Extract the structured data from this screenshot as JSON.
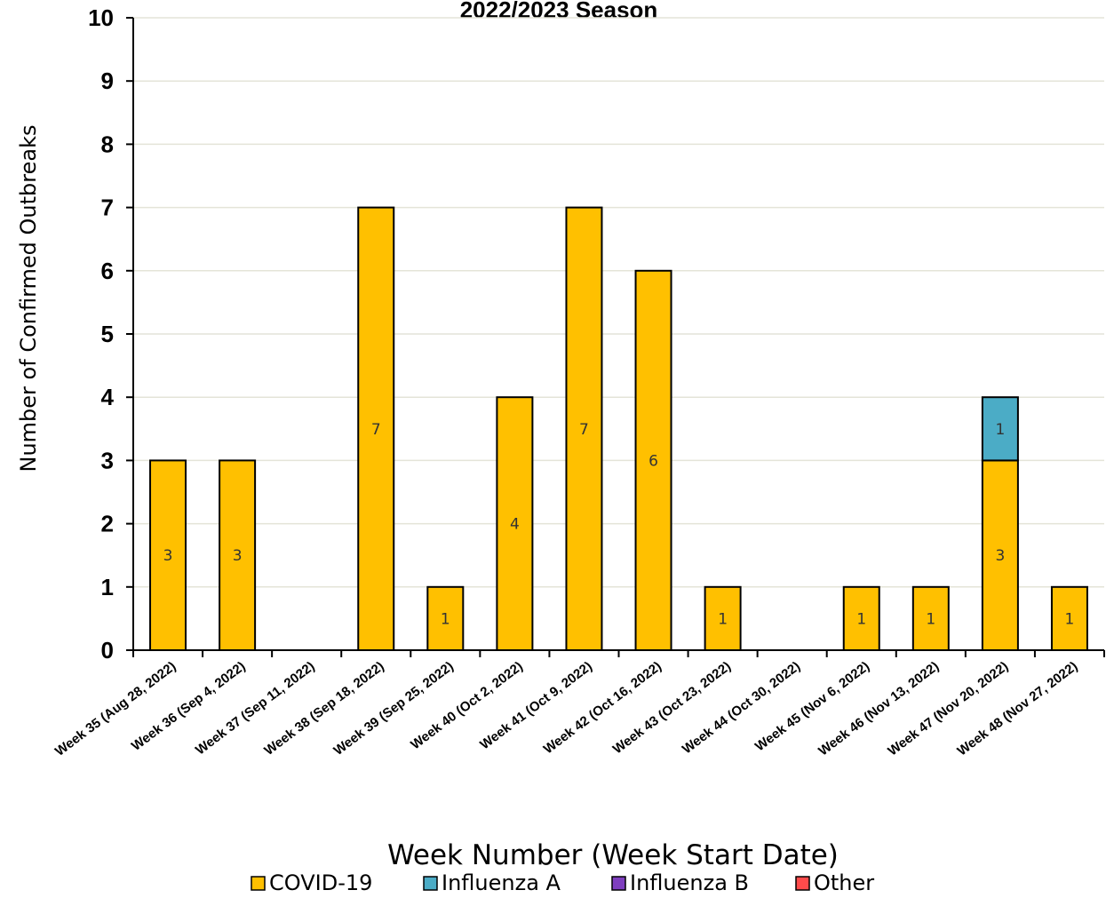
{
  "chart_data": {
    "type": "bar",
    "stacked": true,
    "title": "2022/2023 Season",
    "xlabel": "Week Number (Week Start Date)",
    "ylabel": "Number of Confirmed Outbreaks",
    "ylim": [
      0,
      10
    ],
    "yticks": [
      "0",
      "1",
      "2",
      "3",
      "4",
      "5",
      "6",
      "7",
      "8",
      "9",
      "10"
    ],
    "grid": true,
    "legend_position": "bottom",
    "categories": [
      "Week 35 (Aug 28, 2022)",
      "Week 36 (Sep 4, 2022)",
      "Week 37 (Sep 11, 2022)",
      "Week 38 (Sep 18, 2022)",
      "Week 39 (Sep 25, 2022)",
      "Week 40 (Oct 2, 2022)",
      "Week 41 (Oct 9, 2022)",
      "Week 42 (Oct 16, 2022)",
      "Week 43 (Oct 23, 2022)",
      "Week 44 (Oct 30, 2022)",
      "Week 45 (Nov 6, 2022)",
      "Week 46 (Nov 13, 2022)",
      "Week 47 (Nov 20, 2022)",
      "Week 48 (Nov 27, 2022)"
    ],
    "series": [
      {
        "name": "COVID-19",
        "color": "#FFC000",
        "values": [
          3,
          3,
          0,
          7,
          1,
          4,
          7,
          6,
          1,
          0,
          1,
          1,
          3,
          1
        ]
      },
      {
        "name": "Influenza A",
        "color": "#4BACC6",
        "values": [
          0,
          0,
          0,
          0,
          0,
          0,
          0,
          0,
          0,
          0,
          0,
          0,
          1,
          0
        ]
      },
      {
        "name": "Influenza B",
        "color": "#7F3FBF",
        "values": [
          0,
          0,
          0,
          0,
          0,
          0,
          0,
          0,
          0,
          0,
          0,
          0,
          0,
          0
        ]
      },
      {
        "name": "Other",
        "color": "#FF4B4B",
        "values": [
          0,
          0,
          0,
          0,
          0,
          0,
          0,
          0,
          0,
          0,
          0,
          0,
          0,
          0
        ]
      }
    ]
  }
}
